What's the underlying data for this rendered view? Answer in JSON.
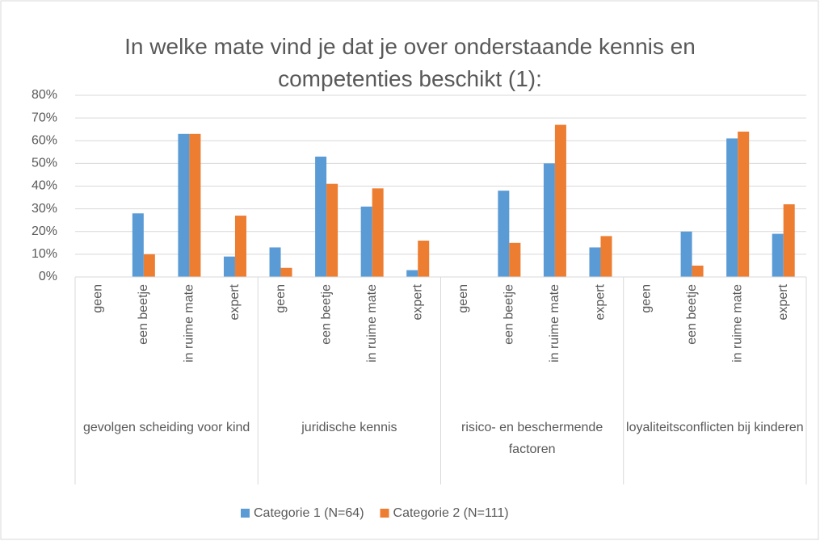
{
  "chart_data": {
    "type": "bar",
    "title": "In welke mate vind je dat je over onderstaande kennis en competenties beschikt (1):",
    "groups": [
      "gevolgen scheiding voor kind",
      "juridische kennis",
      "risico- en beschermende factoren",
      "loyaliteitsconflicten bij kinderen"
    ],
    "categories": [
      "geen",
      "een beetje",
      "in ruime mate",
      "expert",
      "geen",
      "een beetje",
      "in ruime mate",
      "expert",
      "geen",
      "een beetje",
      "in ruime mate",
      "expert",
      "geen",
      "een beetje",
      "in ruime mate",
      "expert"
    ],
    "series": [
      {
        "name": "Categorie 1 (N=64)",
        "color": "#5b9bd5",
        "values": [
          0,
          28,
          63,
          9,
          13,
          53,
          31,
          3,
          0,
          38,
          50,
          13,
          0,
          20,
          61,
          19
        ]
      },
      {
        "name": "Categorie 2 (N=111)",
        "color": "#ed7d31",
        "values": [
          0,
          10,
          63,
          27,
          4,
          41,
          39,
          16,
          0,
          15,
          67,
          18,
          0,
          5,
          64,
          32
        ]
      }
    ],
    "ylim": [
      0,
      80
    ],
    "yticks": [
      {
        "value": 0,
        "label": "0%"
      },
      {
        "value": 10,
        "label": "10%"
      },
      {
        "value": 20,
        "label": "20%"
      },
      {
        "value": 30,
        "label": "30%"
      },
      {
        "value": 40,
        "label": "40%"
      },
      {
        "value": 50,
        "label": "50%"
      },
      {
        "value": 60,
        "label": "60%"
      },
      {
        "value": 70,
        "label": "70%"
      },
      {
        "value": 80,
        "label": "80%"
      }
    ],
    "grid": true,
    "legend": "bottom"
  }
}
